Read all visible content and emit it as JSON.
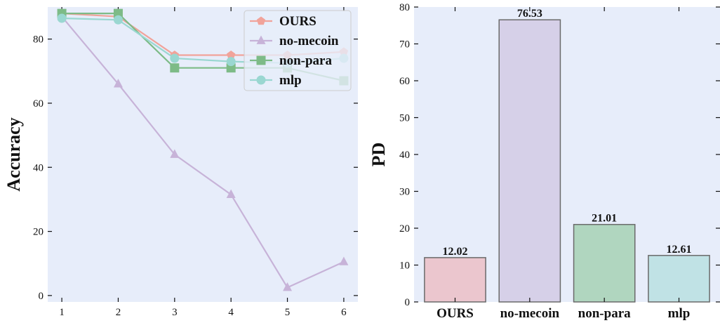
{
  "chart_data": [
    {
      "type": "line",
      "title": "",
      "xlabel": "",
      "ylabel": "Accuracy",
      "x": [
        1,
        2,
        3,
        4,
        5,
        6
      ],
      "xlim": [
        0.75,
        6.25
      ],
      "ylim": [
        -2,
        90
      ],
      "yticks": [
        0,
        20,
        40,
        60,
        80
      ],
      "grid": false,
      "legend_position": "top-right",
      "series": [
        {
          "name": "OURS",
          "marker": "pentagon",
          "color": "#f1a39a",
          "values": [
            88,
            87,
            75,
            75,
            75,
            76
          ]
        },
        {
          "name": "no-mecoin",
          "marker": "triangle",
          "color": "#c7b3d8",
          "values": [
            87,
            66,
            44,
            31.5,
            2.5,
            10.5
          ]
        },
        {
          "name": "non-para",
          "marker": "square",
          "color": "#7dbb87",
          "values": [
            88,
            88,
            71,
            71,
            71,
            67
          ]
        },
        {
          "name": "mlp",
          "marker": "circle",
          "color": "#9ad7d1",
          "values": [
            86.5,
            86,
            74,
            73,
            72.5,
            74
          ]
        }
      ]
    },
    {
      "type": "bar",
      "title": "",
      "xlabel": "",
      "ylabel": "PD",
      "categories": [
        "OURS",
        "no-mecoin",
        "non-para",
        "mlp"
      ],
      "values": [
        12.02,
        76.53,
        21.01,
        12.61
      ],
      "value_labels": [
        "12.02",
        "76.53",
        "21.01",
        "12.61"
      ],
      "colors": [
        "#ebc6ce",
        "#d6d0e8",
        "#b0d6bf",
        "#c0e2e5"
      ],
      "edge_color": "#6a6a6a",
      "ylim": [
        0,
        80
      ],
      "yticks": [
        0,
        10,
        20,
        30,
        40,
        50,
        60,
        70,
        80
      ],
      "grid": false
    }
  ],
  "style": {
    "plot_background": "#e7edfa",
    "tick_color": "#111111"
  }
}
